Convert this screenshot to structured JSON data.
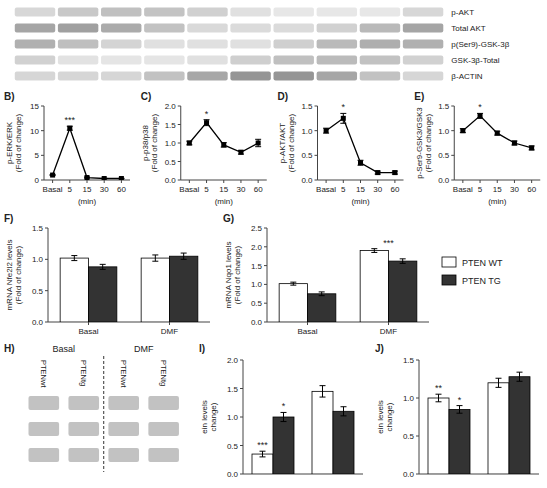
{
  "chart_data": [
    {
      "type": "blot",
      "categories": [
        "p-AKT",
        "Total AKT",
        "p(Ser9)-GSK-3β",
        "GSK-3β-Total",
        "β-ACTIN"
      ]
    },
    {
      "type": "line",
      "title": "B)",
      "xlabel": "(min)",
      "ylabel": "p-ERK/ERK\n(Fold of change)",
      "categories": [
        "Basal",
        "5",
        "15",
        "30",
        "60"
      ],
      "values": [
        1.0,
        10.5,
        0.5,
        0.3,
        0.3
      ],
      "errors": [
        0.1,
        0.4,
        0.1,
        0.05,
        0.05
      ],
      "color": "#000000",
      "marker": "square",
      "ylim": [
        0,
        15
      ],
      "yticks": [
        0,
        5,
        10,
        15
      ],
      "annotations": [
        {
          "text": "***",
          "index": 1
        }
      ]
    },
    {
      "type": "line",
      "title": "C)",
      "xlabel": "(min)",
      "ylabel": "p-p38/p38\n(Fold of change)",
      "categories": [
        "Basal",
        "5",
        "15",
        "30",
        "60"
      ],
      "values": [
        1.0,
        1.55,
        0.95,
        0.75,
        1.0
      ],
      "errors": [
        0.05,
        0.08,
        0.06,
        0.05,
        0.1
      ],
      "color": "#000000",
      "marker": "square",
      "ylim": [
        0.0,
        2.0
      ],
      "yticks": [
        {
          "value": 0.0,
          "label": "0.0"
        },
        0.5,
        {
          "value": 1.0,
          "label": "1.0"
        },
        1.5,
        {
          "value": 2.0,
          "label": "2.0"
        }
      ],
      "annotations": [
        {
          "text": "*",
          "index": 1
        }
      ]
    },
    {
      "type": "line",
      "title": "D)",
      "xlabel": "(min)",
      "ylabel": "p-AKT/AKT\n(Fold of change)",
      "categories": [
        "Basal",
        "5",
        "15",
        "30",
        "60"
      ],
      "values": [
        1.0,
        1.25,
        0.35,
        0.15,
        0.15
      ],
      "errors": [
        0.05,
        0.1,
        0.05,
        0.03,
        0.03
      ],
      "color": "#000000",
      "marker": "square",
      "ylim": [
        0.0,
        1.5
      ],
      "yticks": [
        {
          "value": 0.0,
          "label": "0.0"
        },
        0.5,
        {
          "value": 1.0,
          "label": "1.0"
        },
        1.5
      ],
      "annotations": [
        {
          "text": "*",
          "index": 1
        }
      ]
    },
    {
      "type": "line",
      "title": "E)",
      "xlabel": "(min)",
      "ylabel": "p-Ser9-GSK3/GSK3\n(Fold of change)",
      "categories": [
        "Basal",
        "5",
        "15",
        "30",
        "60"
      ],
      "values": [
        1.0,
        1.3,
        0.95,
        0.75,
        0.65
      ],
      "errors": [
        0.04,
        0.05,
        0.04,
        0.04,
        0.04
      ],
      "color": "#000000",
      "marker": "square",
      "ylim": [
        0.0,
        1.5
      ],
      "yticks": [
        {
          "value": 0.0,
          "label": "0.0"
        },
        0.5,
        {
          "value": 1.0,
          "label": "1.0"
        },
        1.5
      ],
      "annotations": [
        {
          "text": "*",
          "index": 1
        }
      ]
    },
    {
      "type": "bar",
      "title": "F)",
      "ylabel": "mRNA Nfe2l2 levels\n(Fold of change)",
      "categories": [
        "Basal",
        "DMF"
      ],
      "series": [
        {
          "color": "#ffffff",
          "values": [
            1.02,
            1.02
          ],
          "errors": [
            0.04,
            0.05
          ]
        },
        {
          "color": "#333333",
          "values": [
            0.88,
            1.05
          ],
          "errors": [
            0.04,
            0.05
          ]
        }
      ],
      "ylim": [
        0.0,
        1.5
      ],
      "yticks": [
        {
          "value": 0.0,
          "label": "0.0"
        },
        0.5,
        {
          "value": 1.0,
          "label": "1.0"
        },
        1.5
      ]
    },
    {
      "type": "bar",
      "title": "G)",
      "ylabel": "mRNA Nqo1 levels\n(Fold of change)",
      "categories": [
        "Basal",
        "DMF"
      ],
      "series": [
        {
          "name": "PTEN WT",
          "color": "#ffffff",
          "values": [
            1.02,
            1.9
          ],
          "errors": [
            0.04,
            0.05
          ]
        },
        {
          "name": "PTEN TG",
          "color": "#333333",
          "values": [
            0.75,
            1.62
          ],
          "errors": [
            0.05,
            0.06
          ]
        }
      ],
      "ylim": [
        0.0,
        2.5
      ],
      "yticks": [
        {
          "value": 0.0,
          "label": "0.0"
        },
        0.5,
        {
          "value": 1.0,
          "label": "1.0"
        },
        1.5,
        {
          "value": 2.0,
          "label": "2.0"
        },
        2.5
      ],
      "legend": "right",
      "annotations": [
        {
          "text": "***",
          "index": 1
        }
      ]
    },
    {
      "type": "blot",
      "title": "H)",
      "categories": [
        "PTENwt",
        "PTENtg",
        "PTENwt",
        "PTENtg"
      ],
      "annotations": [
        {
          "text": "Basal"
        },
        {
          "text": "DMF"
        }
      ]
    },
    {
      "type": "bar",
      "title": "I)",
      "ylabel": "ein levels\nchange)",
      "categories": [
        null,
        null
      ],
      "series": [
        {
          "color": "#ffffff",
          "values": [
            0.35,
            1.45
          ],
          "errors": [
            0.05,
            0.1
          ]
        },
        {
          "color": "#333333",
          "values": [
            1.0,
            1.1
          ],
          "errors": [
            0.08,
            0.08
          ]
        }
      ],
      "ylim": [
        0.0,
        2.0
      ],
      "yticks": [
        {
          "value": 0.0,
          "label": "0.0"
        },
        0.5,
        {
          "value": 1.0,
          "label": "1.0"
        },
        1.5,
        {
          "value": 2.0,
          "label": "2.0"
        }
      ],
      "annotations": [
        {
          "text": "***",
          "index": 0,
          "series": 0
        },
        {
          "text": "*",
          "index": 0,
          "series": 1
        }
      ]
    },
    {
      "type": "bar",
      "title": "J)",
      "ylabel": "ein levels\nchange)",
      "categories": [
        null,
        null
      ],
      "series": [
        {
          "color": "#ffffff",
          "values": [
            1.0,
            1.2
          ],
          "errors": [
            0.05,
            0.06
          ]
        },
        {
          "color": "#333333",
          "values": [
            0.85,
            1.28
          ],
          "errors": [
            0.05,
            0.06
          ]
        }
      ],
      "ylim": [
        0.0,
        1.5
      ],
      "yticks": [
        {
          "value": 0.0,
          "label": "0.0"
        },
        0.5,
        {
          "value": 1.0,
          "label": "1.0"
        },
        1.5
      ],
      "annotations": [
        {
          "text": "**",
          "index": 0,
          "series": 0
        },
        {
          "text": "*",
          "index": 0,
          "series": 1
        }
      ]
    }
  ]
}
